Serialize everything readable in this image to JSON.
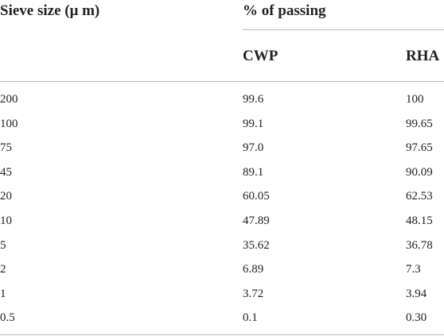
{
  "table": {
    "header": {
      "col0": "Sieve size (μ m)",
      "group": "% of passing",
      "sub": [
        "CWP",
        "RHA"
      ]
    },
    "rows": [
      [
        "200",
        "99.6",
        "100"
      ],
      [
        "100",
        "99.1",
        "99.65"
      ],
      [
        "75",
        "97.0",
        "97.65"
      ],
      [
        "45",
        "89.1",
        "90.09"
      ],
      [
        "20",
        "60.05",
        "62.53"
      ],
      [
        "10",
        "47.89",
        "48.15"
      ],
      [
        "5",
        "35.62",
        "36.78"
      ],
      [
        "2",
        "6.89",
        "7.3"
      ],
      [
        "1",
        "3.72",
        "3.94"
      ],
      [
        "0.5",
        "0.1",
        "0.30"
      ]
    ]
  }
}
